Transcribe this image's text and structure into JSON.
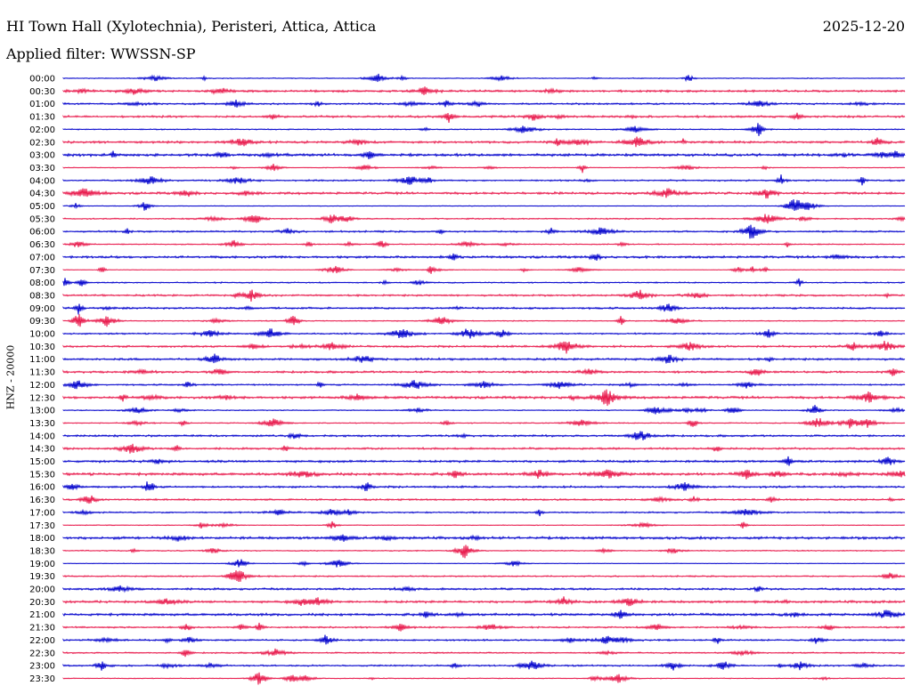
{
  "header": {
    "station_title": "HI Town Hall (Xylotechnia), Peristeri, Attica, Attica",
    "date": "2025-12-20",
    "filter_label": "Applied filter: WWSSN-SP"
  },
  "axis": {
    "channel_label": "HNZ - 20000"
  },
  "colors": {
    "even_trace": "#0000cc",
    "odd_trace": "#e8174a"
  },
  "time_labels": [
    "00:00",
    "00:30",
    "01:00",
    "01:30",
    "02:00",
    "02:30",
    "03:00",
    "03:30",
    "04:00",
    "04:30",
    "05:00",
    "05:30",
    "06:00",
    "06:30",
    "07:00",
    "07:30",
    "08:00",
    "08:30",
    "09:00",
    "09:30",
    "10:00",
    "10:30",
    "11:00",
    "11:30",
    "12:00",
    "12:30",
    "13:00",
    "13:30",
    "14:00",
    "14:30",
    "15:00",
    "15:30",
    "16:00",
    "16:30",
    "17:00",
    "17:30",
    "18:00",
    "18:30",
    "19:00",
    "19:30",
    "20:00",
    "20:30",
    "21:00",
    "21:30",
    "22:00",
    "22:30",
    "23:00",
    "23:30"
  ]
}
